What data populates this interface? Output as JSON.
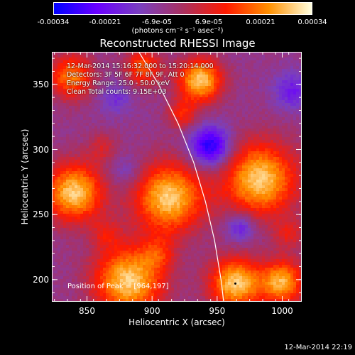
{
  "colorbar": {
    "ticks": [
      "-0.00034",
      "-0.00021",
      "-6.9e-05",
      "6.9e-05",
      "0.00021",
      "0.00034"
    ],
    "unit_label": "(photons cm⁻² s⁻¹ asec⁻²)",
    "range": [
      -0.00034,
      0.00034
    ],
    "colors": [
      "#0000ff",
      "#6a00ff",
      "#7a3fbf",
      "#aa3060",
      "#ff1a00",
      "#ff9000",
      "#ffffe0"
    ]
  },
  "info": {
    "line1": "12-Mar-2014 15:16:32.000 to 15:20:14.000",
    "line2": "Detectors: 3F 5F 6F 7F 8F 9F, Att 0",
    "line3": "Energy Range: 25.0 - 50.0 keV",
    "line4": "Clean     Total counts: 9.15E+03"
  },
  "peak_label": "Position of Peak = [964,197]",
  "timestamp": "12-Mar-2014 22:19",
  "chart_data": {
    "type": "heatmap",
    "title": "Reconstructed RHESSI Image",
    "xlabel": "Heliocentric X (arcsec)",
    "ylabel": "Heliocentric Y (arcsec)",
    "xlim": [
      823,
      1015
    ],
    "ylim": [
      183,
      375
    ],
    "xticks": [
      850,
      900,
      950,
      1000
    ],
    "yticks": [
      200,
      250,
      300,
      350
    ],
    "peak": [
      964,
      197
    ],
    "limb": [
      [
        888,
        378
      ],
      [
        905,
        350
      ],
      [
        920,
        320
      ],
      [
        932,
        290
      ],
      [
        941,
        260
      ],
      [
        948,
        230
      ],
      [
        953,
        200
      ],
      [
        955,
        183
      ]
    ],
    "sources": [
      {
        "x": 838,
        "y": 356,
        "v": 0.75,
        "s": 12
      },
      {
        "x": 840,
        "y": 267,
        "v": 1.0,
        "s": 16
      },
      {
        "x": 893,
        "y": 363,
        "v": 0.65,
        "s": 10
      },
      {
        "x": 937,
        "y": 353,
        "v": 1.0,
        "s": 12
      },
      {
        "x": 913,
        "y": 263,
        "v": 1.0,
        "s": 19
      },
      {
        "x": 983,
        "y": 277,
        "v": 1.0,
        "s": 20
      },
      {
        "x": 882,
        "y": 199,
        "v": 1.0,
        "s": 19
      },
      {
        "x": 964,
        "y": 197,
        "v": 1.0,
        "s": 14
      },
      {
        "x": 1000,
        "y": 198,
        "v": 0.9,
        "s": 12
      },
      {
        "x": 923,
        "y": 327,
        "v": 0.45,
        "s": 8
      },
      {
        "x": 862,
        "y": 302,
        "v": 0.3,
        "s": 8
      },
      {
        "x": 1005,
        "y": 235,
        "v": 0.35,
        "s": 8
      },
      {
        "x": 905,
        "y": 220,
        "v": 0.35,
        "s": 9
      },
      {
        "x": 865,
        "y": 235,
        "v": 0.3,
        "s": 8
      }
    ],
    "dips": [
      {
        "x": 945,
        "y": 302,
        "v": -0.8,
        "s": 11
      },
      {
        "x": 1008,
        "y": 345,
        "v": -0.4,
        "s": 10
      },
      {
        "x": 872,
        "y": 340,
        "v": -0.3,
        "s": 9
      },
      {
        "x": 968,
        "y": 240,
        "v": -0.45,
        "s": 8
      },
      {
        "x": 880,
        "y": 283,
        "v": -0.25,
        "s": 9
      }
    ]
  }
}
